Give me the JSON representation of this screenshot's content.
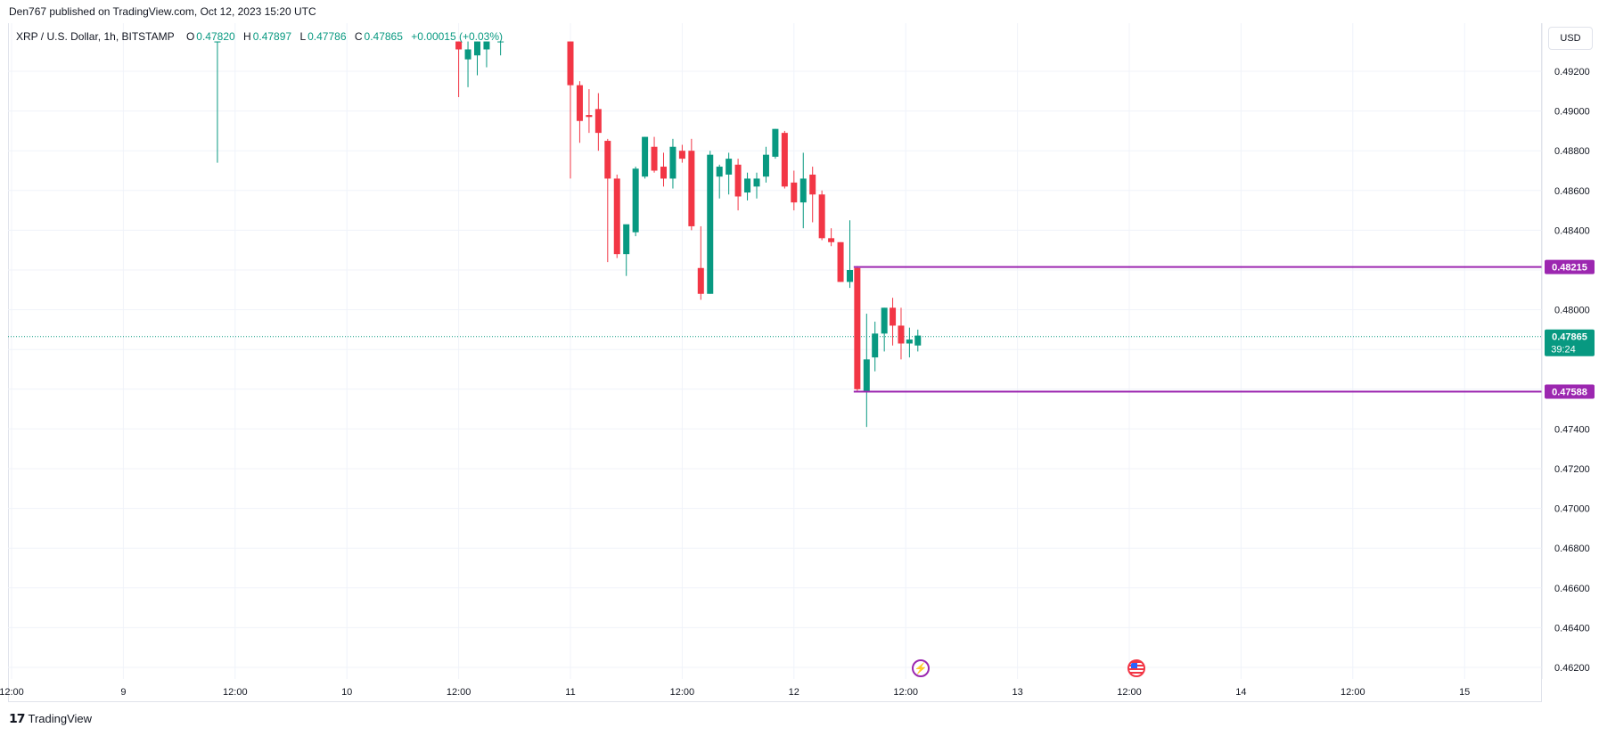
{
  "publisher_line": "Den767 published on TradingView.com, Oct 12, 2023 15:20 UTC",
  "legend": {
    "symbol": "XRP / U.S. Dollar, 1h, BITSTAMP",
    "open_label": "O",
    "open": "0.47820",
    "high_label": "H",
    "high": "0.47897",
    "low_label": "L",
    "low": "0.47786",
    "close_label": "C",
    "close": "0.47865",
    "change": "+0.00015 (+0.03%)"
  },
  "currency_button": "USD",
  "footer_brand": "TradingView",
  "colors": {
    "up": "#089981",
    "down": "#f23645",
    "level_line": "#9c27b0",
    "grid": "#f0f3fa",
    "price_line": "#089981"
  },
  "icons": [
    "lightning-event-icon",
    "us-flag-event-icon",
    "tradingview-logo-icon"
  ],
  "chart_data": {
    "type": "candlestick",
    "y_range": [
      0.4615,
      0.4935
    ],
    "y_ticks": [
      "0.49200",
      "0.49000",
      "0.48800",
      "0.48600",
      "0.48400",
      "0.48200",
      "0.48000",
      "0.47800",
      "0.47600",
      "0.47400",
      "0.47200",
      "0.47000",
      "0.46800",
      "0.46600",
      "0.46400",
      "0.46200"
    ],
    "x_ticks": [
      {
        "label": "12:00",
        "h": 0
      },
      {
        "label": "9",
        "h": 12
      },
      {
        "label": "12:00",
        "h": 24
      },
      {
        "label": "10",
        "h": 36
      },
      {
        "label": "12:00",
        "h": 48
      },
      {
        "label": "11",
        "h": 60
      },
      {
        "label": "12:00",
        "h": 72
      },
      {
        "label": "12",
        "h": 84
      },
      {
        "label": "12:00",
        "h": 96
      },
      {
        "label": "13",
        "h": 108
      },
      {
        "label": "12:00",
        "h": 120
      },
      {
        "label": "14",
        "h": 132
      },
      {
        "label": "12:00",
        "h": 144
      },
      {
        "label": "15",
        "h": 156
      }
    ],
    "current_price": {
      "value": 0.47865,
      "label": "0.47865",
      "countdown": "39:24"
    },
    "levels": [
      {
        "value": 0.48215,
        "label": "0.48215",
        "from_h": 90.8
      },
      {
        "value": 0.47588,
        "label": "0.47588",
        "from_h": 90.8
      }
    ],
    "candles": [
      {
        "h": 22.1,
        "o": 0.4935,
        "hi": 0.4935,
        "l": 0.4874,
        "c": 0.4935
      },
      {
        "h": 48.0,
        "o": 0.4935,
        "hi": 0.4935,
        "l": 0.4907,
        "c": 0.4931
      },
      {
        "h": 49.0,
        "o": 0.4926,
        "hi": 0.4935,
        "l": 0.4912,
        "c": 0.4931
      },
      {
        "h": 50.0,
        "o": 0.4928,
        "hi": 0.4935,
        "l": 0.4918,
        "c": 0.4935
      },
      {
        "h": 51.0,
        "o": 0.4931,
        "hi": 0.4935,
        "l": 0.4922,
        "c": 0.4935
      },
      {
        "h": 52.5,
        "o": 0.4935,
        "hi": 0.4935,
        "l": 0.4928,
        "c": 0.4935
      },
      {
        "h": 60.0,
        "o": 0.4935,
        "hi": 0.4935,
        "l": 0.4866,
        "c": 0.4913
      },
      {
        "h": 61.0,
        "o": 0.4913,
        "hi": 0.4915,
        "l": 0.4884,
        "c": 0.4895
      },
      {
        "h": 62.0,
        "o": 0.4898,
        "hi": 0.4911,
        "l": 0.4889,
        "c": 0.4897
      },
      {
        "h": 63.0,
        "o": 0.4901,
        "hi": 0.4909,
        "l": 0.488,
        "c": 0.4889
      },
      {
        "h": 64.0,
        "o": 0.4885,
        "hi": 0.4886,
        "l": 0.4824,
        "c": 0.4866
      },
      {
        "h": 65.0,
        "o": 0.4866,
        "hi": 0.4868,
        "l": 0.4826,
        "c": 0.4828
      },
      {
        "h": 66.0,
        "o": 0.4828,
        "hi": 0.4842,
        "l": 0.4817,
        "c": 0.4843
      },
      {
        "h": 67.0,
        "o": 0.4839,
        "hi": 0.4872,
        "l": 0.4837,
        "c": 0.4871
      },
      {
        "h": 68.0,
        "o": 0.4867,
        "hi": 0.4887,
        "l": 0.4866,
        "c": 0.4887
      },
      {
        "h": 69.0,
        "o": 0.4882,
        "hi": 0.4887,
        "l": 0.4869,
        "c": 0.487
      },
      {
        "h": 70.0,
        "o": 0.4872,
        "hi": 0.4879,
        "l": 0.4862,
        "c": 0.4866
      },
      {
        "h": 71.0,
        "o": 0.4866,
        "hi": 0.4886,
        "l": 0.4861,
        "c": 0.4882
      },
      {
        "h": 72.0,
        "o": 0.488,
        "hi": 0.4883,
        "l": 0.4874,
        "c": 0.4876
      },
      {
        "h": 73.0,
        "o": 0.488,
        "hi": 0.4886,
        "l": 0.484,
        "c": 0.4842
      },
      {
        "h": 74.0,
        "o": 0.4821,
        "hi": 0.4842,
        "l": 0.4805,
        "c": 0.4808
      },
      {
        "h": 75.0,
        "o": 0.4808,
        "hi": 0.488,
        "l": 0.4808,
        "c": 0.4878
      },
      {
        "h": 76.0,
        "o": 0.4867,
        "hi": 0.4873,
        "l": 0.4856,
        "c": 0.4872
      },
      {
        "h": 77.0,
        "o": 0.4868,
        "hi": 0.4879,
        "l": 0.4858,
        "c": 0.4876
      },
      {
        "h": 78.0,
        "o": 0.4873,
        "hi": 0.4876,
        "l": 0.485,
        "c": 0.4857
      },
      {
        "h": 79.0,
        "o": 0.4859,
        "hi": 0.4869,
        "l": 0.4855,
        "c": 0.4866
      },
      {
        "h": 80.0,
        "o": 0.4862,
        "hi": 0.4869,
        "l": 0.4856,
        "c": 0.4866
      },
      {
        "h": 81.0,
        "o": 0.4867,
        "hi": 0.4882,
        "l": 0.4864,
        "c": 0.4878
      },
      {
        "h": 82.0,
        "o": 0.4877,
        "hi": 0.4891,
        "l": 0.4876,
        "c": 0.4891
      },
      {
        "h": 83.0,
        "o": 0.4889,
        "hi": 0.489,
        "l": 0.4861,
        "c": 0.4862
      },
      {
        "h": 84.0,
        "o": 0.4864,
        "hi": 0.487,
        "l": 0.485,
        "c": 0.4854
      },
      {
        "h": 85.0,
        "o": 0.4854,
        "hi": 0.4879,
        "l": 0.4841,
        "c": 0.4866
      },
      {
        "h": 86.0,
        "o": 0.4868,
        "hi": 0.4872,
        "l": 0.4844,
        "c": 0.4858
      },
      {
        "h": 87.0,
        "o": 0.4858,
        "hi": 0.486,
        "l": 0.4835,
        "c": 0.4836
      },
      {
        "h": 88.0,
        "o": 0.4836,
        "hi": 0.4841,
        "l": 0.4832,
        "c": 0.4834
      },
      {
        "h": 89.0,
        "o": 0.4834,
        "hi": 0.4834,
        "l": 0.4814,
        "c": 0.4814
      },
      {
        "h": 90.0,
        "o": 0.4814,
        "hi": 0.4845,
        "l": 0.4811,
        "c": 0.482
      },
      {
        "h": 90.8,
        "o": 0.4821,
        "hi": 0.4822,
        "l": 0.4759,
        "c": 0.476
      },
      {
        "h": 91.8,
        "o": 0.4759,
        "hi": 0.4798,
        "l": 0.4741,
        "c": 0.4775
      },
      {
        "h": 92.7,
        "o": 0.4776,
        "hi": 0.4794,
        "l": 0.4769,
        "c": 0.4788
      },
      {
        "h": 93.7,
        "o": 0.4788,
        "hi": 0.4801,
        "l": 0.4779,
        "c": 0.4801
      },
      {
        "h": 94.6,
        "o": 0.4801,
        "hi": 0.4806,
        "l": 0.4782,
        "c": 0.4792
      },
      {
        "h": 95.5,
        "o": 0.4792,
        "hi": 0.4801,
        "l": 0.4775,
        "c": 0.4783
      },
      {
        "h": 96.4,
        "o": 0.4783,
        "hi": 0.4791,
        "l": 0.4776,
        "c": 0.4785
      },
      {
        "h": 97.3,
        "o": 0.4782,
        "hi": 0.479,
        "l": 0.4779,
        "c": 0.4787
      }
    ]
  }
}
